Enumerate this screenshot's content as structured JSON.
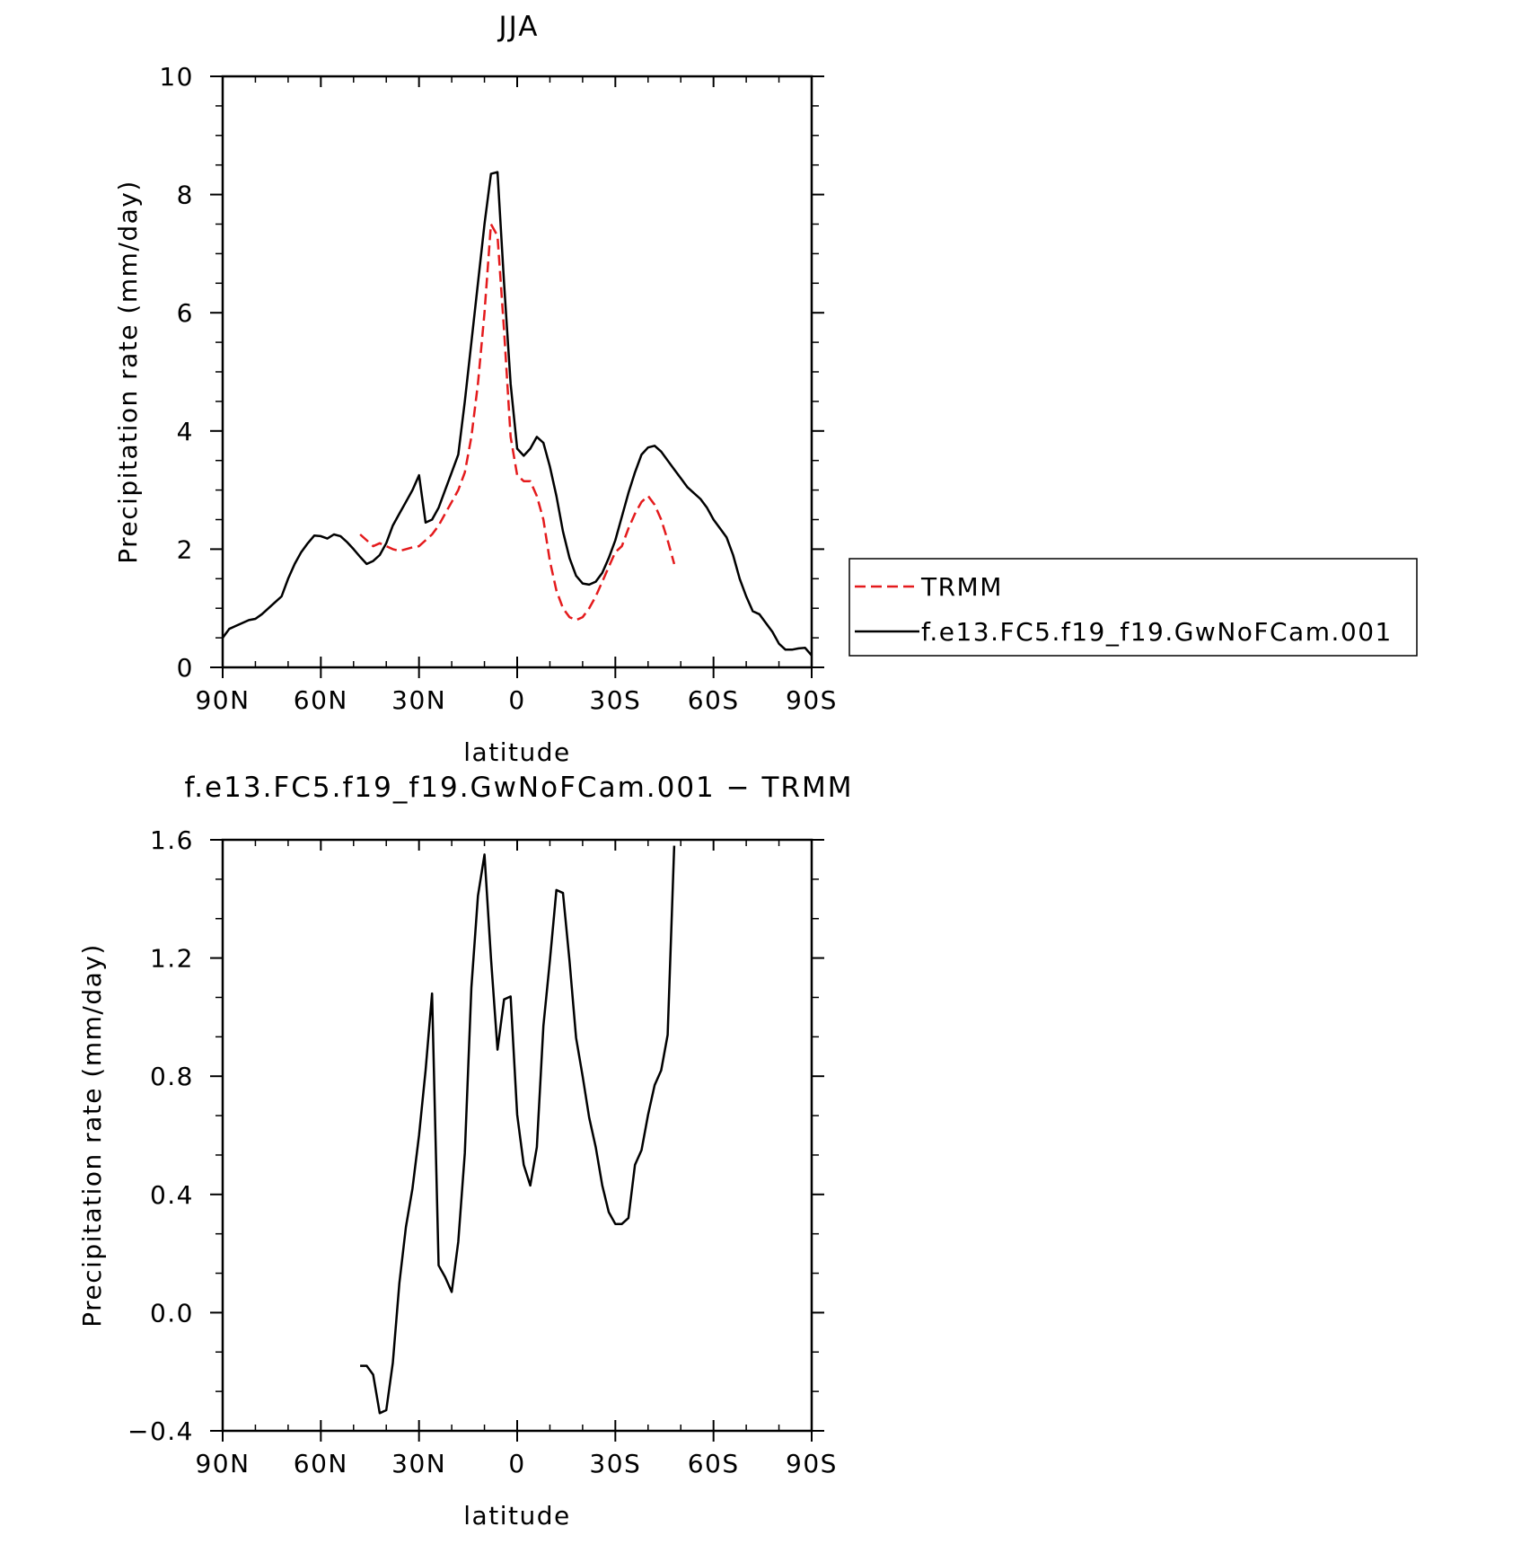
{
  "chart_data": [
    {
      "type": "line",
      "title": "JJA",
      "xlabel": "latitude",
      "ylabel": "Precipitation rate (mm/day)",
      "xlim": [
        90,
        -90
      ],
      "ylim": [
        0,
        10
      ],
      "x_ticks": [
        90,
        60,
        30,
        0,
        -30,
        -60,
        -90
      ],
      "x_tick_labels": [
        "90N",
        "60N",
        "30N",
        "0",
        "30S",
        "60S",
        "90S"
      ],
      "y_ticks": [
        0,
        2,
        4,
        6,
        8,
        10
      ],
      "y_tick_labels": [
        "0",
        "2",
        "4",
        "6",
        "8",
        "10"
      ],
      "grid": false,
      "legend_placement": "right",
      "series": [
        {
          "name": "TRMM",
          "color": "#e41a1c",
          "style": "dashed",
          "x": [
            48,
            46,
            44,
            42,
            40,
            38,
            36,
            34,
            32,
            30,
            28,
            26,
            24,
            22,
            20,
            18,
            16,
            14,
            12,
            10,
            8,
            6,
            4,
            2,
            0,
            -2,
            -4,
            -6,
            -8,
            -10,
            -12,
            -14,
            -16,
            -18,
            -20,
            -22,
            -24,
            -26,
            -28,
            -30,
            -32,
            -34,
            -36,
            -38,
            -40,
            -42,
            -44,
            -46,
            -48
          ],
          "y": [
            2.25,
            2.15,
            2.05,
            2.1,
            2.05,
            2.0,
            1.97,
            2.0,
            2.03,
            2.05,
            2.15,
            2.25,
            2.4,
            2.6,
            2.8,
            3.0,
            3.3,
            3.9,
            4.8,
            6.0,
            7.5,
            7.3,
            5.7,
            3.9,
            3.25,
            3.15,
            3.15,
            2.9,
            2.5,
            1.8,
            1.3,
            1.0,
            0.85,
            0.8,
            0.85,
            1.0,
            1.2,
            1.45,
            1.7,
            1.95,
            2.05,
            2.35,
            2.6,
            2.8,
            2.9,
            2.75,
            2.5,
            2.15,
            1.75
          ]
        },
        {
          "name": "f.e13.FC5.f19_f19.GwNoFCam.001",
          "color": "#000000",
          "style": "solid",
          "x": [
            90,
            88,
            86,
            84,
            82,
            80,
            78,
            76,
            74,
            72,
            70,
            68,
            66,
            64,
            62,
            60,
            58,
            56,
            54,
            52,
            50,
            48,
            46,
            44,
            42,
            40,
            38,
            36,
            34,
            32,
            30,
            28,
            26,
            24,
            22,
            20,
            18,
            16,
            14,
            12,
            10,
            8,
            6,
            4,
            2,
            0,
            -2,
            -4,
            -6,
            -8,
            -10,
            -12,
            -14,
            -16,
            -18,
            -20,
            -22,
            -24,
            -26,
            -28,
            -30,
            -32,
            -34,
            -36,
            -38,
            -40,
            -42,
            -44,
            -46,
            -48,
            -50,
            -52,
            -54,
            -56,
            -58,
            -60,
            -62,
            -64,
            -66,
            -68,
            -70,
            -72,
            -74,
            -76,
            -78,
            -80,
            -82,
            -84,
            -86,
            -88,
            -90
          ],
          "y": [
            0.5,
            0.65,
            0.7,
            0.75,
            0.8,
            0.82,
            0.9,
            1.0,
            1.1,
            1.2,
            1.5,
            1.75,
            1.95,
            2.1,
            2.23,
            2.22,
            2.18,
            2.25,
            2.22,
            2.12,
            2.0,
            1.87,
            1.75,
            1.8,
            1.9,
            2.1,
            2.4,
            2.6,
            2.8,
            3.0,
            3.25,
            2.45,
            2.5,
            2.7,
            3.0,
            3.3,
            3.6,
            4.5,
            5.5,
            6.5,
            7.5,
            8.35,
            8.38,
            6.5,
            4.8,
            3.7,
            3.58,
            3.7,
            3.9,
            3.8,
            3.4,
            2.9,
            2.3,
            1.85,
            1.55,
            1.42,
            1.4,
            1.45,
            1.6,
            1.85,
            2.15,
            2.55,
            2.95,
            3.3,
            3.6,
            3.72,
            3.75,
            3.65,
            3.5,
            3.35,
            3.2,
            3.05,
            2.95,
            2.85,
            2.7,
            2.5,
            2.35,
            2.2,
            1.9,
            1.5,
            1.2,
            0.95,
            0.9,
            0.75,
            0.6,
            0.4,
            0.3,
            0.3,
            0.32,
            0.33,
            0.2
          ]
        }
      ]
    },
    {
      "type": "line",
      "title": "f.e13.FC5.f19_f19.GwNoFCam.001 − TRMM",
      "xlabel": "latitude",
      "ylabel": "Precipitation rate (mm/day)",
      "xlim": [
        90,
        -90
      ],
      "ylim": [
        -0.4,
        1.6
      ],
      "x_ticks": [
        90,
        60,
        30,
        0,
        -30,
        -60,
        -90
      ],
      "x_tick_labels": [
        "90N",
        "60N",
        "30N",
        "0",
        "30S",
        "60S",
        "90S"
      ],
      "y_ticks": [
        -0.4,
        0.0,
        0.4,
        0.8,
        1.2,
        1.6
      ],
      "y_tick_labels": [
        "−0.4",
        "0.0",
        "0.4",
        "0.8",
        "1.2",
        "1.6"
      ],
      "grid": false,
      "series": [
        {
          "color": "#000000",
          "style": "solid",
          "x": [
            48,
            46,
            44,
            42,
            40,
            38,
            36,
            34,
            32,
            30,
            28,
            26,
            24,
            22,
            20,
            18,
            16,
            14,
            12,
            10,
            8,
            6,
            4,
            2,
            0,
            -2,
            -4,
            -6,
            -8,
            -10,
            -12,
            -14,
            -16,
            -18,
            -20,
            -22,
            -24,
            -26,
            -28,
            -30,
            -32,
            -34,
            -36,
            -38,
            -40,
            -42,
            -44,
            -46,
            -48
          ],
          "y": [
            -0.18,
            -0.18,
            -0.21,
            -0.34,
            -0.33,
            -0.17,
            0.1,
            0.29,
            0.42,
            0.6,
            0.82,
            1.08,
            0.16,
            0.12,
            0.07,
            0.24,
            0.54,
            1.1,
            1.41,
            1.55,
            1.2,
            0.89,
            1.06,
            1.07,
            0.67,
            0.5,
            0.43,
            0.56,
            0.97,
            1.19,
            1.43,
            1.42,
            1.19,
            0.93,
            0.8,
            0.66,
            0.56,
            0.43,
            0.34,
            0.3,
            0.3,
            0.32,
            0.5,
            0.55,
            0.67,
            0.77,
            0.82,
            0.94,
            1.58
          ]
        }
      ]
    }
  ]
}
